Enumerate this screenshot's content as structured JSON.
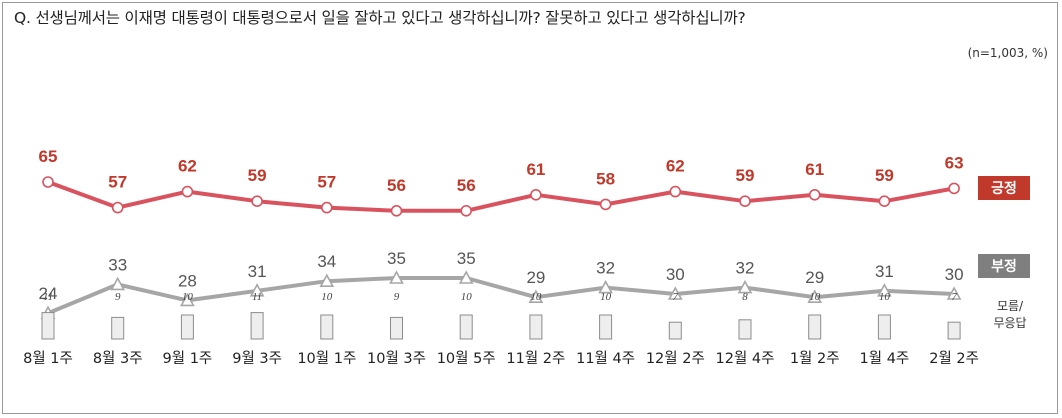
{
  "question": "Q. 선생님께서는 이재명 대통령이 대통령으로서 일을 잘하고 있다고 생각하십니까? 잘못하고 있다고 생각하십니까?",
  "sample_note": "(n=1,003, %)",
  "colors": {
    "positive": "#d9535f",
    "positive_badge": "#c0392b",
    "negative": "#a6a6a6",
    "negative_badge": "#7f7f7f",
    "dk_bar": "#eeeeee"
  },
  "chart_data": {
    "type": "line",
    "categories": [
      "8월 1주",
      "8월 3주",
      "9월 1주",
      "9월 3주",
      "10월 1주",
      "10월 3주",
      "10월 5주",
      "11월 2주",
      "11월 4주",
      "12월 2주",
      "12월 4주",
      "1월 2주",
      "1월 4주",
      "2월 2주"
    ],
    "series": [
      {
        "name": "긍정",
        "values": [
          65,
          57,
          62,
          59,
          57,
          56,
          56,
          61,
          58,
          62,
          59,
          61,
          59,
          63
        ]
      },
      {
        "name": "부정",
        "values": [
          24,
          33,
          28,
          31,
          34,
          35,
          35,
          29,
          32,
          30,
          32,
          29,
          31,
          30
        ]
      },
      {
        "name": "모름/\n무응답",
        "type": "bar",
        "values": [
          11,
          9,
          10,
          11,
          10,
          9,
          10,
          10,
          10,
          7,
          8,
          10,
          10,
          7
        ]
      }
    ],
    "title": "",
    "xlabel": "",
    "ylabel": "",
    "legend": "right"
  }
}
